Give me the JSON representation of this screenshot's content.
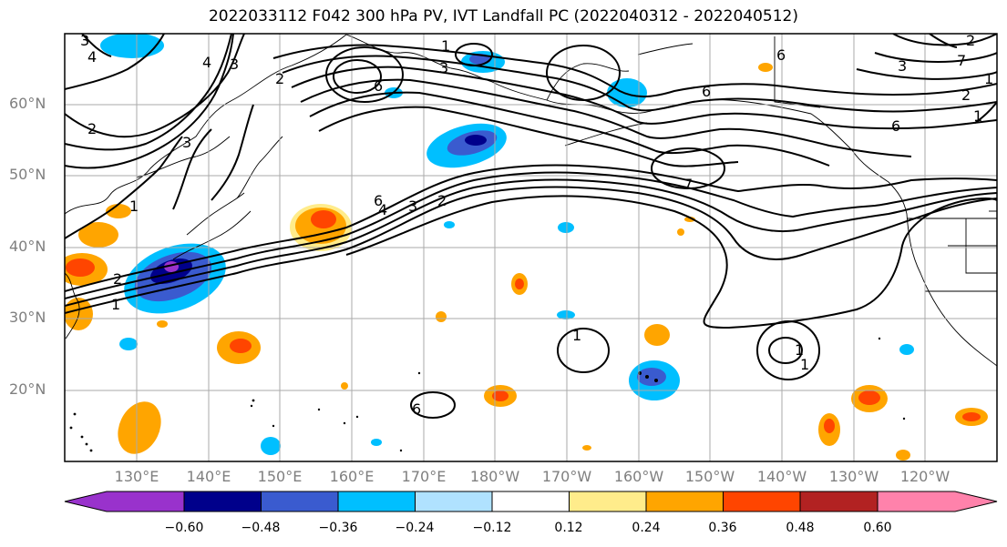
{
  "title": "2022033112 F042 300 hPa PV, IVT Landfall PC (2022040312 - 2022040512)",
  "lat_labels": [
    "60°N",
    "50°N",
    "40°N",
    "30°N",
    "20°N"
  ],
  "lon_labels": [
    "130°E",
    "140°E",
    "150°E",
    "160°E",
    "170°E",
    "180°W",
    "170°W",
    "160°W",
    "150°W",
    "140°W",
    "130°W",
    "120°W"
  ],
  "colorbar": {
    "colors": [
      "#9932cc",
      "#00008b",
      "#3a5bcf",
      "#00bfff",
      "#b0e2ff",
      "#ffffff",
      "#ffec8b",
      "#ffa500",
      "#ff4500",
      "#b22222",
      "#ff82ab"
    ],
    "tick_labels": [
      "−0.60",
      "−0.48",
      "−0.36",
      "−0.24",
      "−0.12",
      "0.12",
      "0.24",
      "0.36",
      "0.48",
      "0.60"
    ]
  },
  "colors": {
    "grid": "#aaaaaa",
    "axis_label": "#7f7f7f",
    "contour": "#000000"
  },
  "contour_labels": [
    "3",
    "4",
    "4",
    "3",
    "2",
    "2",
    "3",
    "1",
    "6",
    "2",
    "1",
    "3",
    "1",
    "6",
    "4",
    "3",
    "2",
    "6",
    "7",
    "6",
    "6",
    "3",
    "2",
    "1",
    "1",
    "1",
    "1",
    "6",
    "2",
    "7",
    "1",
    "1"
  ]
}
